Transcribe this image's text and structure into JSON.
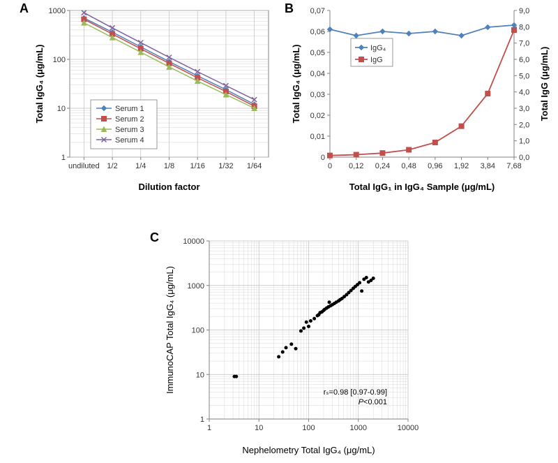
{
  "panels": {
    "A": {
      "label": "A",
      "type": "line",
      "yaxis": {
        "title": "Total IgG₄ (μg/mL)",
        "scale": "log",
        "min": 1,
        "max": 1000,
        "ticks": [
          1,
          10,
          100,
          1000
        ],
        "fontsize": 11,
        "title_fontsize": 13
      },
      "xaxis": {
        "title": "Dilution factor",
        "categories": [
          "undiluted",
          "1/2",
          "1/4",
          "1/8",
          "1/16",
          "1/32",
          "1/64"
        ],
        "fontsize": 11,
        "title_fontsize": 13
      },
      "series": [
        {
          "name": "Serum 1",
          "color": "#4f81bd",
          "marker": "diamond",
          "values": [
            700,
            360,
            180,
            90,
            46,
            24,
            12
          ]
        },
        {
          "name": "Serum 2",
          "color": "#c0504d",
          "marker": "square",
          "values": [
            660,
            330,
            165,
            83,
            42,
            22,
            11
          ]
        },
        {
          "name": "Serum 3",
          "color": "#9bbb59",
          "marker": "triangle",
          "values": [
            560,
            280,
            140,
            70,
            36,
            19,
            10
          ]
        },
        {
          "name": "Serum 4",
          "color": "#8064a2",
          "marker": "x",
          "values": [
            900,
            440,
            220,
            110,
            56,
            29,
            15
          ]
        }
      ],
      "legend_fontsize": 11,
      "line_width": 1.5,
      "marker_size": 7,
      "grid_color": "#bfbfbf",
      "axis_color": "#808080",
      "background": "#ffffff"
    },
    "B": {
      "label": "B",
      "type": "line",
      "xaxis": {
        "title": "Total IgG₁ in IgG₄ Sample (μg/mL)",
        "categories": [
          "0",
          "0,12",
          "0,24",
          "0,48",
          "0,96",
          "1,92",
          "3,84",
          "7,68"
        ],
        "fontsize": 11,
        "title_fontsize": 13
      },
      "y_left": {
        "title": "Total IgG₄ (μg/mL)",
        "min": 0,
        "max": 0.07,
        "ticks": [
          0,
          0.01,
          0.02,
          0.03,
          0.04,
          0.05,
          0.06,
          0.07
        ],
        "fontsize": 11,
        "title_fontsize": 13
      },
      "y_right": {
        "title": "Total IgG (μg/mL)",
        "min": 0,
        "max": 9.0,
        "ticks": [
          0,
          1.0,
          2.0,
          3.0,
          4.0,
          5.0,
          6.0,
          7.0,
          8.0,
          9.0
        ],
        "fontsize": 11,
        "title_fontsize": 13
      },
      "series": [
        {
          "name": "IgG₄",
          "axis": "left",
          "color": "#4f81bd",
          "marker": "diamond",
          "values": [
            0.061,
            0.058,
            0.06,
            0.059,
            0.06,
            0.058,
            0.062,
            0.063
          ]
        },
        {
          "name": "IgG",
          "axis": "right",
          "color": "#c0504d",
          "marker": "square",
          "values": [
            0.1,
            0.15,
            0.25,
            0.45,
            0.9,
            1.9,
            3.9,
            7.8
          ]
        }
      ],
      "legend_fontsize": 11,
      "line_width": 1.8,
      "marker_size": 7,
      "axis_color": "#808080",
      "background": "#ffffff"
    },
    "C": {
      "label": "C",
      "type": "scatter",
      "xaxis": {
        "title": "Nephelometry Total IgG₄ (μg/mL)",
        "scale": "log",
        "min": 1,
        "max": 10000,
        "ticks": [
          1,
          10,
          100,
          1000,
          10000
        ],
        "fontsize": 11,
        "title_fontsize": 13
      },
      "yaxis": {
        "title": "ImmunoCAP Total IgG₄ (μg/mL)",
        "scale": "log",
        "min": 1,
        "max": 10000,
        "ticks": [
          1,
          10,
          100,
          1000,
          10000
        ],
        "fontsize": 11,
        "title_fontsize": 13
      },
      "marker": {
        "color": "#000000",
        "size": 5
      },
      "annotation": {
        "line1": "rₛ=0.98 [0.97-0.99]",
        "line2_prefix_italic": "P",
        "line2_rest": "<0.001",
        "fontsize": 11
      },
      "grid_color": "#bfbfbf",
      "axis_color": "#808080",
      "background": "#ffffff",
      "points": [
        [
          3.2,
          9
        ],
        [
          3.5,
          9
        ],
        [
          25,
          25
        ],
        [
          30,
          32
        ],
        [
          35,
          40
        ],
        [
          45,
          48
        ],
        [
          55,
          38
        ],
        [
          70,
          95
        ],
        [
          80,
          110
        ],
        [
          90,
          150
        ],
        [
          100,
          120
        ],
        [
          110,
          160
        ],
        [
          130,
          180
        ],
        [
          150,
          210
        ],
        [
          160,
          220
        ],
        [
          170,
          245
        ],
        [
          185,
          255
        ],
        [
          200,
          275
        ],
        [
          210,
          290
        ],
        [
          230,
          310
        ],
        [
          250,
          330
        ],
        [
          275,
          350
        ],
        [
          300,
          370
        ],
        [
          330,
          395
        ],
        [
          260,
          420
        ],
        [
          360,
          420
        ],
        [
          400,
          450
        ],
        [
          430,
          480
        ],
        [
          470,
          510
        ],
        [
          520,
          560
        ],
        [
          580,
          620
        ],
        [
          640,
          690
        ],
        [
          710,
          770
        ],
        [
          790,
          860
        ],
        [
          870,
          950
        ],
        [
          960,
          1040
        ],
        [
          1060,
          1150
        ],
        [
          1170,
          750
        ],
        [
          1300,
          1380
        ],
        [
          1450,
          1500
        ],
        [
          1600,
          1200
        ],
        [
          1800,
          1300
        ],
        [
          2000,
          1450
        ]
      ]
    }
  }
}
